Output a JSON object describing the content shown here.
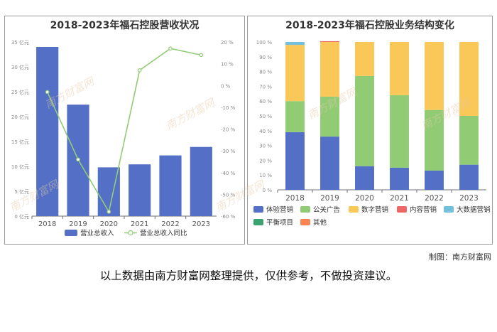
{
  "credit": "制图：南方财富网",
  "disclaimer": "以上数据由南方财富网整理提供，仅供参考，不做投资建议。",
  "watermark": "南方财富网",
  "chart_data": [
    {
      "type": "bar",
      "title": "2018-2023年福石控股营收状况",
      "categories": [
        "2018",
        "2019",
        "2020",
        "2021",
        "2022",
        "2023"
      ],
      "y_left_ticks": [
        "0 亿元",
        "5 亿元",
        "10 亿元",
        "15 亿元",
        "20 亿元",
        "25 亿元",
        "30 亿元",
        "35 亿元"
      ],
      "y_right_ticks": [
        "-60 %",
        "-50 %",
        "-40 %",
        "-30 %",
        "-20 %",
        "-10 %",
        "0 %",
        "10 %",
        "20 %"
      ],
      "ylim_left": [
        0,
        35
      ],
      "ylim_right": [
        -60,
        20
      ],
      "grid": false,
      "legend_position": "bottom",
      "series": [
        {
          "name": "营业总收入",
          "type": "bar",
          "axis": "left",
          "color": "#5470c6",
          "values": [
            34.0,
            22.4,
            9.8,
            10.4,
            12.2,
            13.9
          ]
        },
        {
          "name": "营业总收入同比",
          "type": "line",
          "axis": "right",
          "color": "#91cc75",
          "values": [
            -3,
            -34,
            -58,
            7,
            17,
            14
          ]
        }
      ]
    },
    {
      "type": "bar",
      "stacked": true,
      "title": "2018-2023年福石控股业务结构变化",
      "categories": [
        "2018",
        "2019",
        "2020",
        "2021",
        "2022",
        "2023"
      ],
      "y_ticks": [
        "0 %",
        "10 %",
        "20 %",
        "30 %",
        "40 %",
        "50 %",
        "60 %",
        "70 %",
        "80 %",
        "90 %",
        "100 %"
      ],
      "ylim": [
        0,
        100
      ],
      "grid": false,
      "legend_position": "bottom",
      "series": [
        {
          "name": "体验营销",
          "color": "#5470c6",
          "values": [
            39,
            36,
            16,
            15,
            13,
            17
          ]
        },
        {
          "name": "公关广告",
          "color": "#91cc75",
          "values": [
            21,
            27,
            61,
            49,
            41,
            33
          ]
        },
        {
          "name": "数字营销",
          "color": "#fac858",
          "values": [
            38,
            37,
            23,
            36,
            46,
            50
          ]
        },
        {
          "name": "内容营销",
          "color": "#ee6666",
          "values": [
            0,
            0.5,
            0,
            0,
            0,
            0
          ]
        },
        {
          "name": "大数据营销",
          "color": "#73c0de",
          "values": [
            2,
            0,
            0,
            0,
            0,
            0
          ]
        },
        {
          "name": "平衡项目",
          "color": "#3ba272",
          "values": [
            0,
            0,
            0,
            0,
            0,
            0
          ]
        },
        {
          "name": "其他",
          "color": "#fc8452",
          "values": [
            0,
            0,
            0,
            0,
            0,
            0
          ]
        }
      ]
    }
  ]
}
